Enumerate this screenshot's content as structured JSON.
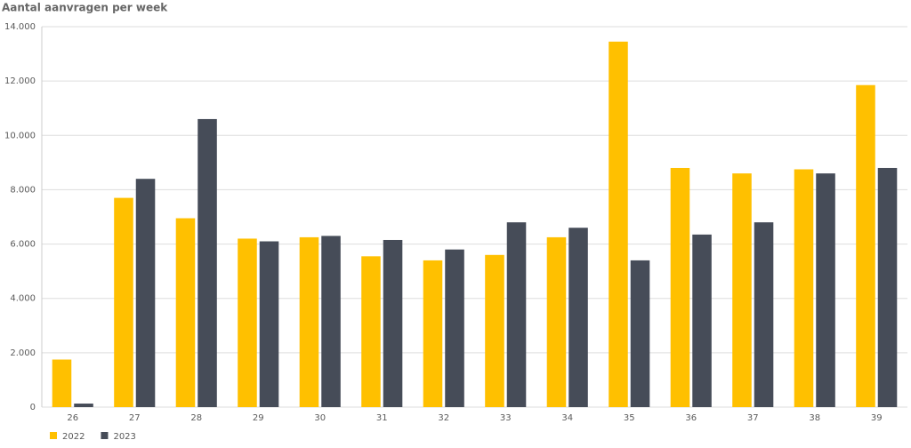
{
  "chart_data": {
    "type": "bar",
    "title": "Aantal aanvragen per week",
    "categories": [
      "26",
      "27",
      "28",
      "29",
      "30",
      "31",
      "32",
      "33",
      "34",
      "35",
      "36",
      "37",
      "38",
      "39"
    ],
    "series": [
      {
        "name": "2022",
        "color": "#ffc000",
        "values": [
          1750,
          7700,
          6950,
          6200,
          6250,
          5550,
          5400,
          5600,
          6250,
          13450,
          8800,
          8600,
          8750,
          11850
        ]
      },
      {
        "name": "2023",
        "color": "#464c58",
        "values": [
          130,
          8400,
          10600,
          6100,
          6300,
          6150,
          5800,
          6800,
          6600,
          5400,
          6350,
          6800,
          8600,
          8800
        ]
      }
    ],
    "ylim": [
      0,
      14000
    ],
    "yticks": [
      0,
      {
        "value": 2000,
        "label": "2.000"
      },
      {
        "value": 4000,
        "label": "4.000"
      },
      {
        "value": 6000,
        "label": "6.000"
      },
      {
        "value": 8000,
        "label": "8.000"
      },
      {
        "value": 10000,
        "label": "10.000"
      },
      {
        "value": 12000,
        "label": "12.000"
      },
      {
        "value": 14000,
        "label": "14.000"
      }
    ],
    "grid": true,
    "legend": "bottom-left"
  }
}
